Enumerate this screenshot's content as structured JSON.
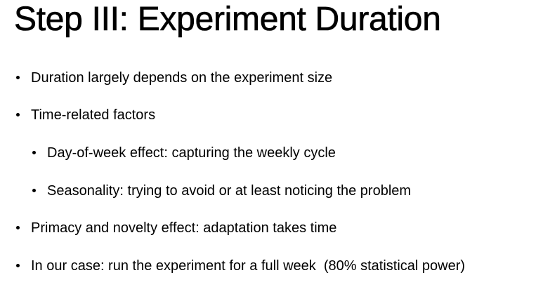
{
  "slide": {
    "title": "Step III: Experiment Duration",
    "bullets": [
      {
        "level": 1,
        "text": "Duration largely depends on the experiment size"
      },
      {
        "level": 1,
        "text": "Time-related factors"
      },
      {
        "level": 2,
        "text": "Day-of-week effect: capturing the weekly cycle"
      },
      {
        "level": 2,
        "text": "Seasonality: trying to avoid or at least noticing the problem"
      },
      {
        "level": 1,
        "text": "Primacy and novelty effect: adaptation takes time"
      },
      {
        "level": 1,
        "text": "In our case: run the experiment for a full week  (80% statistical power)"
      }
    ]
  }
}
